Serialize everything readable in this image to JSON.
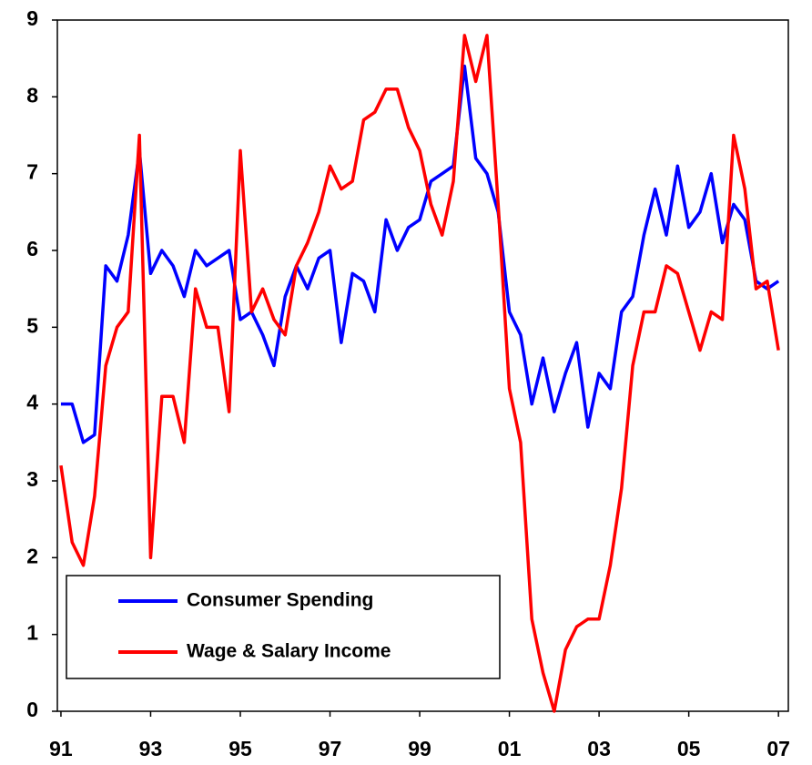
{
  "chart_data": {
    "type": "line",
    "x": [
      1991,
      1991.25,
      1991.5,
      1991.75,
      1992,
      1992.25,
      1992.5,
      1992.75,
      1993,
      1993.25,
      1993.5,
      1993.75,
      1994,
      1994.25,
      1994.5,
      1994.75,
      1995,
      1995.25,
      1995.5,
      1995.75,
      1996,
      1996.25,
      1996.5,
      1996.75,
      1997,
      1997.25,
      1997.5,
      1997.75,
      1998,
      1998.25,
      1998.5,
      1998.75,
      1999,
      1999.25,
      1999.5,
      1999.75,
      2000,
      2000.25,
      2000.5,
      2000.75,
      2001,
      2001.25,
      2001.5,
      2001.75,
      2002,
      2002.25,
      2002.5,
      2002.75,
      2003,
      2003.25,
      2003.5,
      2003.75,
      2004,
      2004.25,
      2004.5,
      2004.75,
      2005,
      2005.25,
      2005.5,
      2005.75,
      2006,
      2006.25,
      2006.5,
      2006.75,
      2007
    ],
    "series": [
      {
        "name": "Consumer Spending",
        "color": "#0000ff",
        "values": [
          4.0,
          4.0,
          3.5,
          3.6,
          5.8,
          5.6,
          6.2,
          7.3,
          5.7,
          6.0,
          5.8,
          5.4,
          6.0,
          5.8,
          5.9,
          6.0,
          5.1,
          5.2,
          4.9,
          4.5,
          5.4,
          5.8,
          5.5,
          5.9,
          6.0,
          4.8,
          5.7,
          5.6,
          5.2,
          6.4,
          6.0,
          6.3,
          6.4,
          6.9,
          7.0,
          7.1,
          8.4,
          7.2,
          7.0,
          6.5,
          5.2,
          4.9,
          4.0,
          4.6,
          3.9,
          4.4,
          4.8,
          3.7,
          4.4,
          4.2,
          5.2,
          5.4,
          6.2,
          6.8,
          6.2,
          7.1,
          6.3,
          6.5,
          7.0,
          6.1,
          6.6,
          6.4,
          5.6,
          5.5,
          5.6
        ]
      },
      {
        "name": "Wage & Salary Income",
        "color": "#ff0000",
        "values": [
          3.2,
          2.2,
          1.9,
          2.8,
          4.5,
          5.0,
          5.2,
          7.5,
          2.0,
          4.1,
          4.1,
          3.5,
          5.5,
          5.0,
          5.0,
          3.9,
          7.3,
          5.2,
          5.5,
          5.1,
          4.9,
          5.8,
          6.1,
          6.5,
          7.1,
          6.8,
          6.9,
          7.7,
          7.8,
          8.1,
          8.1,
          7.6,
          7.3,
          6.6,
          6.2,
          6.9,
          8.8,
          8.2,
          8.8,
          6.6,
          4.2,
          3.5,
          1.2,
          0.5,
          0.0,
          0.8,
          1.1,
          1.2,
          1.2,
          1.9,
          2.9,
          4.5,
          5.2,
          5.2,
          5.8,
          5.7,
          5.2,
          4.7,
          5.2,
          5.1,
          7.5,
          6.8,
          5.5,
          5.6,
          4.7
        ]
      }
    ],
    "xlim": [
      1990.92,
      2007.22
    ],
    "xticks": [
      {
        "value": 1991,
        "label": "91"
      },
      {
        "value": 1993,
        "label": "93"
      },
      {
        "value": 1995,
        "label": "95"
      },
      {
        "value": 1997,
        "label": "97"
      },
      {
        "value": 1999,
        "label": "99"
      },
      {
        "value": 2001,
        "label": "01"
      },
      {
        "value": 2003,
        "label": "03"
      },
      {
        "value": 2005,
        "label": "05"
      },
      {
        "value": 2007,
        "label": "07"
      }
    ],
    "ylim": [
      0,
      9
    ],
    "yticks": [
      0,
      1,
      2,
      3,
      4,
      5,
      6,
      7,
      8,
      9
    ],
    "legend": "lower left"
  }
}
